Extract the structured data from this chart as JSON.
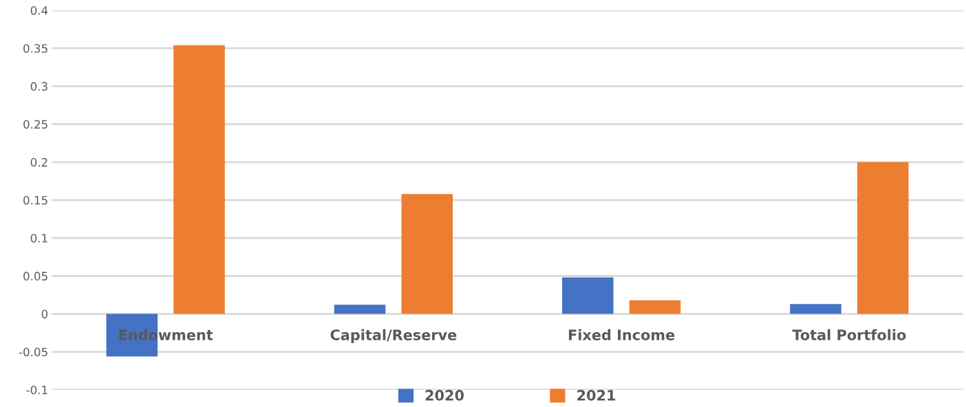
{
  "chart_data": {
    "type": "bar",
    "categories": [
      "Endowment",
      "Capital/Reserve",
      "Fixed Income",
      "Total Portfolio"
    ],
    "series": [
      {
        "name": "2020",
        "color": "#4472c4",
        "values": [
          -0.056,
          0.012,
          0.048,
          0.013
        ]
      },
      {
        "name": "2021",
        "color": "#ed7d31",
        "values": [
          0.354,
          0.158,
          0.018,
          0.2
        ]
      }
    ],
    "ylim": [
      -0.1,
      0.4
    ],
    "yticks": [
      -0.1,
      -0.05,
      0,
      0.05,
      0.1,
      0.15,
      0.2,
      0.25,
      0.3,
      0.35,
      0.4
    ],
    "grid": "y",
    "legend": "bottom"
  }
}
